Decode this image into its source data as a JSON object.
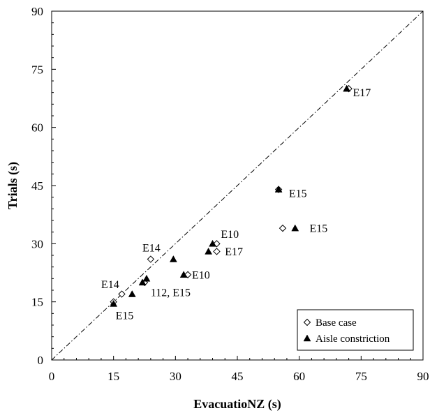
{
  "chart_data": {
    "type": "scatter",
    "xlabel": "EvacuatioNZ (s)",
    "ylabel": "Trials (s)",
    "xlim": [
      0,
      90
    ],
    "ylim": [
      0,
      90
    ],
    "x_ticks": [
      0,
      15,
      30,
      45,
      60,
      75,
      90
    ],
    "y_ticks": [
      0,
      15,
      30,
      45,
      60,
      75,
      90
    ],
    "grid": false,
    "reference_line": {
      "style": "dash-dot",
      "from": [
        0,
        0
      ],
      "to": [
        90,
        90
      ]
    },
    "legend_position": "bottom-right",
    "series": [
      {
        "name": "Base case",
        "marker": "open-diamond",
        "points": [
          [
            15.0,
            15.0
          ],
          [
            17.0,
            17.0
          ],
          [
            22.5,
            20.0
          ],
          [
            24.0,
            26.0
          ],
          [
            33.0,
            22.0
          ],
          [
            40.0,
            30.0
          ],
          [
            40.0,
            28.0
          ],
          [
            55.0,
            44.0
          ],
          [
            56.0,
            34.0
          ],
          [
            72.0,
            70.0
          ]
        ]
      },
      {
        "name": "Aisle constriction",
        "marker": "filled-triangle",
        "points": [
          [
            15.0,
            14.5
          ],
          [
            19.5,
            17.0
          ],
          [
            22.0,
            20.0
          ],
          [
            23.0,
            21.0
          ],
          [
            29.5,
            26.0
          ],
          [
            32.0,
            22.0
          ],
          [
            38.0,
            28.0
          ],
          [
            39.0,
            30.0
          ],
          [
            55.0,
            44.0
          ],
          [
            59.0,
            34.0
          ],
          [
            71.5,
            70.0
          ]
        ]
      }
    ],
    "annotations": [
      {
        "text": "E17",
        "x": 73.0,
        "y": 68.0
      },
      {
        "text": "E15",
        "x": 57.5,
        "y": 42.0
      },
      {
        "text": "E15",
        "x": 62.5,
        "y": 33.0
      },
      {
        "text": "E10",
        "x": 41.0,
        "y": 31.5
      },
      {
        "text": "E17",
        "x": 42.0,
        "y": 27.0
      },
      {
        "text": "E14",
        "x": 22.0,
        "y": 28.0
      },
      {
        "text": "E10",
        "x": 34.0,
        "y": 21.0
      },
      {
        "text": "E14",
        "x": 12.0,
        "y": 18.5
      },
      {
        "text": "112, E15",
        "x": 24.0,
        "y": 16.5
      },
      {
        "text": "E15",
        "x": 15.5,
        "y": 10.5
      }
    ]
  }
}
